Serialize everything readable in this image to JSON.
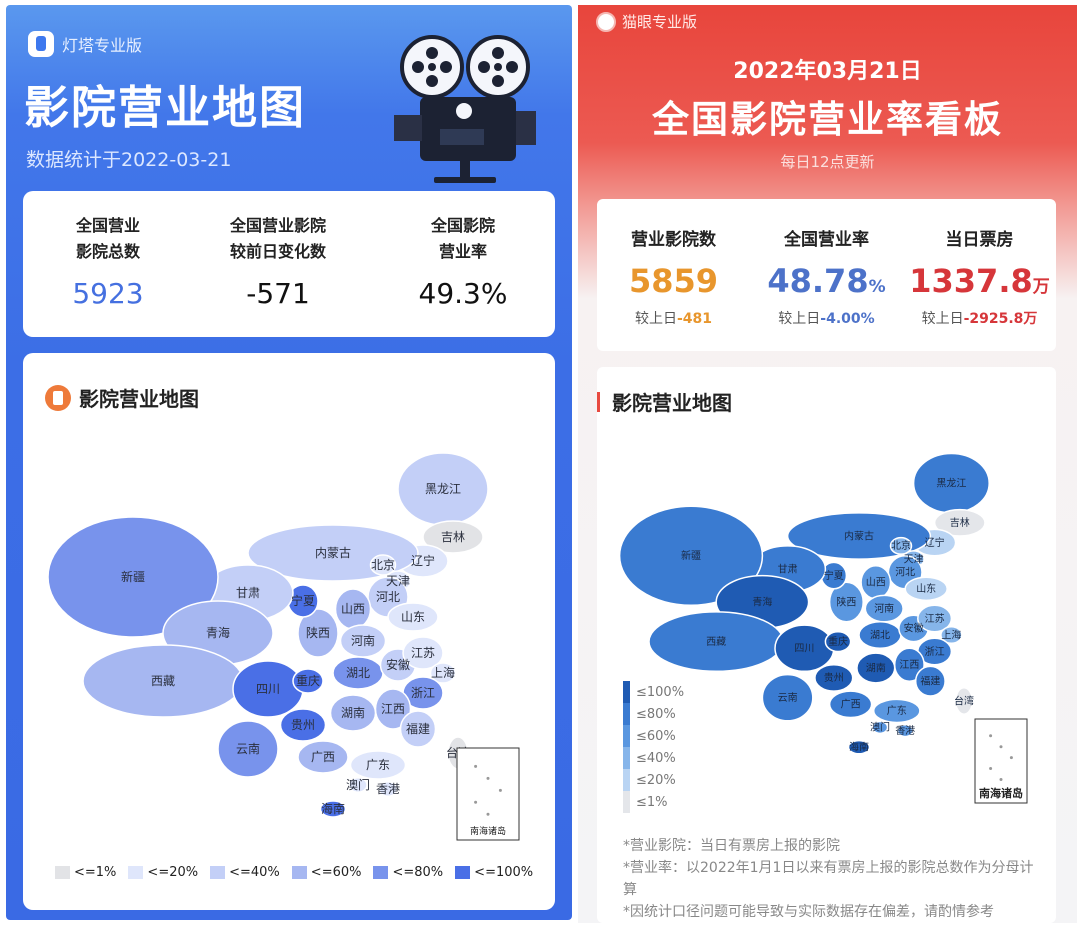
{
  "left": {
    "brand": "灯塔专业版",
    "title": "影院营业地图",
    "date_line": "数据统计于2022-03-21",
    "stats": [
      {
        "label_line1": "全国营业",
        "label_line2": "影院总数",
        "value": "5923",
        "color": "#4570e0"
      },
      {
        "label_line1": "全国营业影院",
        "label_line2": "较前日变化数",
        "value": "-571",
        "color": "#111111"
      },
      {
        "label_line1": "全国影院",
        "label_line2": "营业率",
        "value": "49.3%",
        "color": "#111111"
      }
    ],
    "map_title": "影院营业地图",
    "inset_label": "南海诸岛",
    "legend": [
      {
        "label": "<=1%",
        "color": "#e2e3e6"
      },
      {
        "label": "<=20%",
        "color": "#dfe6fb"
      },
      {
        "label": "<=40%",
        "color": "#c3cff7"
      },
      {
        "label": "<=60%",
        "color": "#a6b7f1"
      },
      {
        "label": "<=80%",
        "color": "#7893ec"
      },
      {
        "label": "<=100%",
        "color": "#4a6fe6"
      }
    ],
    "provinces": [
      {
        "name": "黑龙江",
        "color": "#c3cff7"
      },
      {
        "name": "吉林",
        "color": "#e2e3e6"
      },
      {
        "name": "辽宁",
        "color": "#dfe6fb"
      },
      {
        "name": "内蒙古",
        "color": "#c3cff7"
      },
      {
        "name": "北京",
        "color": "#dfe6fb"
      },
      {
        "name": "天津",
        "color": "#dfe6fb"
      },
      {
        "name": "河北",
        "color": "#c3cff7"
      },
      {
        "name": "山东",
        "color": "#dfe6fb"
      },
      {
        "name": "山西",
        "color": "#a6b7f1"
      },
      {
        "name": "河南",
        "color": "#c3cff7"
      },
      {
        "name": "陕西",
        "color": "#a6b7f1"
      },
      {
        "name": "宁夏",
        "color": "#4a6fe6"
      },
      {
        "name": "甘肃",
        "color": "#c3cff7"
      },
      {
        "name": "新疆",
        "color": "#7893ec"
      },
      {
        "name": "青海",
        "color": "#a6b7f1"
      },
      {
        "name": "西藏",
        "color": "#a6b7f1"
      },
      {
        "name": "四川",
        "color": "#4a6fe6"
      },
      {
        "name": "重庆",
        "color": "#4a6fe6"
      },
      {
        "name": "湖北",
        "color": "#7893ec"
      },
      {
        "name": "安徽",
        "color": "#c3cff7"
      },
      {
        "name": "江苏",
        "color": "#dfe6fb"
      },
      {
        "name": "上海",
        "color": "#dfe6fb"
      },
      {
        "name": "浙江",
        "color": "#7893ec"
      },
      {
        "name": "湖南",
        "color": "#a6b7f1"
      },
      {
        "name": "江西",
        "color": "#a6b7f1"
      },
      {
        "name": "贵州",
        "color": "#4a6fe6"
      },
      {
        "name": "云南",
        "color": "#7893ec"
      },
      {
        "name": "广西",
        "color": "#a6b7f1"
      },
      {
        "name": "广东",
        "color": "#dfe6fb"
      },
      {
        "name": "福建",
        "color": "#c3cff7"
      },
      {
        "name": "澳门",
        "color": "#dfe6fb"
      },
      {
        "name": "香港",
        "color": "#dfe6fb"
      },
      {
        "name": "台湾",
        "color": "#e2e3e6"
      },
      {
        "name": "海南",
        "color": "#4a6fe6"
      }
    ]
  },
  "right": {
    "brand": "猫眼专业版",
    "date": "2022年03月21日",
    "title": "全国影院营业率看板",
    "subtitle": "每日12点更新",
    "stats": [
      {
        "label": "营业影院数",
        "value": "5859",
        "unit": "",
        "color": "#e8962d",
        "change_prefix": "较上日",
        "change": "-481"
      },
      {
        "label": "全国营业率",
        "value": "48.78",
        "unit": "%",
        "color": "#4d72c9",
        "change_prefix": "较上日",
        "change": "-4.00%"
      },
      {
        "label": "当日票房",
        "value": "1337.8",
        "unit": "万",
        "color": "#d6363a",
        "change_prefix": "较上日",
        "change": "-2925.8万"
      }
    ],
    "map_title": "影院营业地图",
    "inset_label": "南海诸岛",
    "legend": [
      {
        "label": "≤100%",
        "color": "#1f5bb3"
      },
      {
        "label": "≤80%",
        "color": "#3a7bd1"
      },
      {
        "label": "≤60%",
        "color": "#5a97e0"
      },
      {
        "label": "≤40%",
        "color": "#86b5ea"
      },
      {
        "label": "≤20%",
        "color": "#b9d4f3"
      },
      {
        "label": "≤1%",
        "color": "#e4e6ea"
      }
    ],
    "provinces": [
      {
        "name": "黑龙江",
        "color": "#3a7bd1"
      },
      {
        "name": "吉林",
        "color": "#e4e6ea"
      },
      {
        "name": "辽宁",
        "color": "#b9d4f3"
      },
      {
        "name": "内蒙古",
        "color": "#3a7bd1"
      },
      {
        "name": "北京",
        "color": "#86b5ea"
      },
      {
        "name": "天津",
        "color": "#86b5ea"
      },
      {
        "name": "河北",
        "color": "#5a97e0"
      },
      {
        "name": "山东",
        "color": "#b9d4f3"
      },
      {
        "name": "山西",
        "color": "#5a97e0"
      },
      {
        "name": "河南",
        "color": "#5a97e0"
      },
      {
        "name": "陕西",
        "color": "#5a97e0"
      },
      {
        "name": "宁夏",
        "color": "#3a7bd1"
      },
      {
        "name": "甘肃",
        "color": "#3a7bd1"
      },
      {
        "name": "新疆",
        "color": "#3a7bd1"
      },
      {
        "name": "青海",
        "color": "#1f5bb3"
      },
      {
        "name": "西藏",
        "color": "#3a7bd1"
      },
      {
        "name": "四川",
        "color": "#1f5bb3"
      },
      {
        "name": "重庆",
        "color": "#1f5bb3"
      },
      {
        "name": "湖北",
        "color": "#3a7bd1"
      },
      {
        "name": "安徽",
        "color": "#5a97e0"
      },
      {
        "name": "江苏",
        "color": "#86b5ea"
      },
      {
        "name": "上海",
        "color": "#86b5ea"
      },
      {
        "name": "浙江",
        "color": "#3a7bd1"
      },
      {
        "name": "湖南",
        "color": "#1f5bb3"
      },
      {
        "name": "江西",
        "color": "#3a7bd1"
      },
      {
        "name": "贵州",
        "color": "#1f5bb3"
      },
      {
        "name": "云南",
        "color": "#3a7bd1"
      },
      {
        "name": "广西",
        "color": "#3a7bd1"
      },
      {
        "name": "广东",
        "color": "#5a97e0"
      },
      {
        "name": "福建",
        "color": "#3a7bd1"
      },
      {
        "name": "澳门",
        "color": "#5a97e0"
      },
      {
        "name": "香港",
        "color": "#5a97e0"
      },
      {
        "name": "台湾",
        "color": "#e4e6ea"
      },
      {
        "name": "海南",
        "color": "#1f5bb3"
      }
    ],
    "notes": [
      "*营业影院：当日有票房上报的影院",
      "*营业率：以2022年1月1日以来有票房上报的影院总数作为分母计算",
      "*因统计口径问题可能导致与实际数据存在偏差，请酌情参考"
    ]
  }
}
